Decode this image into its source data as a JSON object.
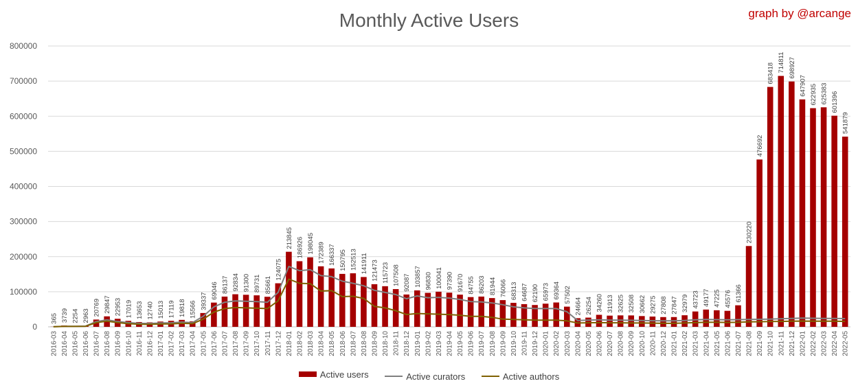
{
  "chart_data": {
    "type": "bar",
    "title": "Monthly Active Users",
    "credit": "graph by @arcange",
    "ylim": [
      0,
      800000
    ],
    "y_ticks": [
      "0",
      "100000",
      "200000",
      "300000",
      "400000",
      "500000",
      "600000",
      "700000",
      "800000"
    ],
    "grid": true,
    "legend_position": "bottom",
    "colors": {
      "users": "#a50000",
      "curators": "#7f7f7f",
      "authors": "#7f6000"
    },
    "categories": [
      "2016-03",
      "2016-04",
      "2016-05",
      "2016-06",
      "2016-07",
      "2016-08",
      "2016-09",
      "2016-10",
      "2016-11",
      "2016-12",
      "2017-01",
      "2017-02",
      "2017-03",
      "2017-04",
      "2017-05",
      "2017-06",
      "2017-07",
      "2017-08",
      "2017-09",
      "2017-10",
      "2017-11",
      "2017-12",
      "2018-01",
      "2018-02",
      "2018-03",
      "2018-04",
      "2018-05",
      "2018-06",
      "2018-07",
      "2018-08",
      "2018-09",
      "2018-10",
      "2018-11",
      "2018-12",
      "2019-01",
      "2019-02",
      "2019-03",
      "2019-04",
      "2019-05",
      "2019-06",
      "2019-07",
      "2019-08",
      "2019-09",
      "2019-10",
      "2019-11",
      "2019-12",
      "2020-01",
      "2020-02",
      "2020-03",
      "2020-04",
      "2020-05",
      "2020-06",
      "2020-07",
      "2020-08",
      "2020-09",
      "2020-10",
      "2020-11",
      "2020-12",
      "2021-01",
      "2021-02",
      "2021-03",
      "2021-04",
      "2021-05",
      "2021-06",
      "2021-07",
      "2021-08",
      "2021-09",
      "2021-10",
      "2021-11",
      "2021-12",
      "2022-01",
      "2022-02",
      "2022-03",
      "2022-04",
      "2022-05"
    ],
    "series": [
      {
        "name": "Active users",
        "labels": [
          "365",
          "3739",
          "2254",
          "2963",
          "20769",
          "29847",
          "22953",
          "17019",
          "13653",
          "12740",
          "15013",
          "17119",
          "19818",
          "15566",
          "39337",
          "69046",
          "86137",
          "92834",
          "91300",
          "89731",
          "85661",
          "124075",
          "213845",
          "186926",
          "198045",
          "172389",
          "166337",
          "150795",
          "152513",
          "141911",
          "121473",
          "115723",
          "107508",
          "92087",
          "103857",
          "96830",
          "100041",
          "97390",
          "91670",
          "84755",
          "86203",
          "81944",
          "76066",
          "68313",
          "64687",
          "62190",
          "65973",
          "69364",
          "57502",
          "24664",
          "26254",
          "34260",
          "31913",
          "32625",
          "32508",
          "30662",
          "29275",
          "27808",
          "27847",
          "32979",
          "43723",
          "49177",
          "47225",
          "45576",
          "61366",
          "230220",
          "476692",
          "683418",
          "714811",
          "698927",
          "647907",
          "622935",
          "625383",
          "601396",
          "541879"
        ],
        "values": [
          365,
          3739,
          2254,
          2963,
          20769,
          29847,
          22953,
          17019,
          13653,
          12740,
          15013,
          17119,
          19818,
          15566,
          39337,
          69046,
          86137,
          92834,
          91300,
          89731,
          85661,
          124075,
          213845,
          186926,
          198045,
          172389,
          166337,
          150795,
          152513,
          141911,
          121473,
          115723,
          107508,
          92087,
          103857,
          96830,
          100041,
          97390,
          91670,
          84755,
          86203,
          81944,
          76066,
          68313,
          64687,
          62190,
          65973,
          69364,
          57502,
          24664,
          26254,
          34260,
          31913,
          32625,
          32508,
          30662,
          29275,
          27808,
          27847,
          32979,
          43723,
          49177,
          47225,
          45576,
          61366,
          230220,
          476692,
          683418,
          714811,
          698927,
          647907,
          622935,
          625383,
          601396,
          541879
        ]
      },
      {
        "name": "Active curators",
        "values": [
          300,
          1500,
          1500,
          2000,
          15000,
          20000,
          15000,
          12000,
          10000,
          9500,
          11000,
          11500,
          13500,
          12000,
          30000,
          57000,
          70000,
          74000,
          73000,
          72000,
          70000,
          98000,
          172000,
          160000,
          163000,
          146000,
          143000,
          130000,
          124000,
          117000,
          104000,
          98000,
          92000,
          80000,
          88000,
          83000,
          84000,
          82000,
          78000,
          72000,
          71000,
          68000,
          63000,
          57000,
          54000,
          52000,
          52000,
          52000,
          43000,
          18000,
          19000,
          20000,
          19000,
          19000,
          18500,
          18000,
          17500,
          17000,
          17000,
          18000,
          20000,
          21000,
          20500,
          20000,
          20500,
          21000,
          21500,
          22000,
          23000,
          24000,
          25000,
          24500,
          24000,
          24000,
          23500
        ]
      },
      {
        "name": "Active authors",
        "values": [
          250,
          1200,
          1200,
          1500,
          12000,
          16000,
          12000,
          9000,
          7500,
          7000,
          8000,
          8500,
          10000,
          9000,
          22000,
          42000,
          52000,
          55000,
          54000,
          53000,
          52000,
          74000,
          136000,
          124000,
          123000,
          102000,
          103000,
          86000,
          87000,
          81000,
          58000,
          54000,
          46000,
          35000,
          38000,
          37000,
          36000,
          35000,
          33000,
          30000,
          30000,
          27000,
          22000,
          21000,
          20000,
          19000,
          19000,
          19000,
          17000,
          11000,
          11500,
          12000,
          11500,
          11500,
          11000,
          11000,
          10500,
          10000,
          10000,
          11000,
          12000,
          13000,
          13000,
          12500,
          13000,
          14000,
          14500,
          15000,
          15500,
          16000,
          16500,
          16000,
          16000,
          16000,
          15500
        ]
      }
    ]
  }
}
